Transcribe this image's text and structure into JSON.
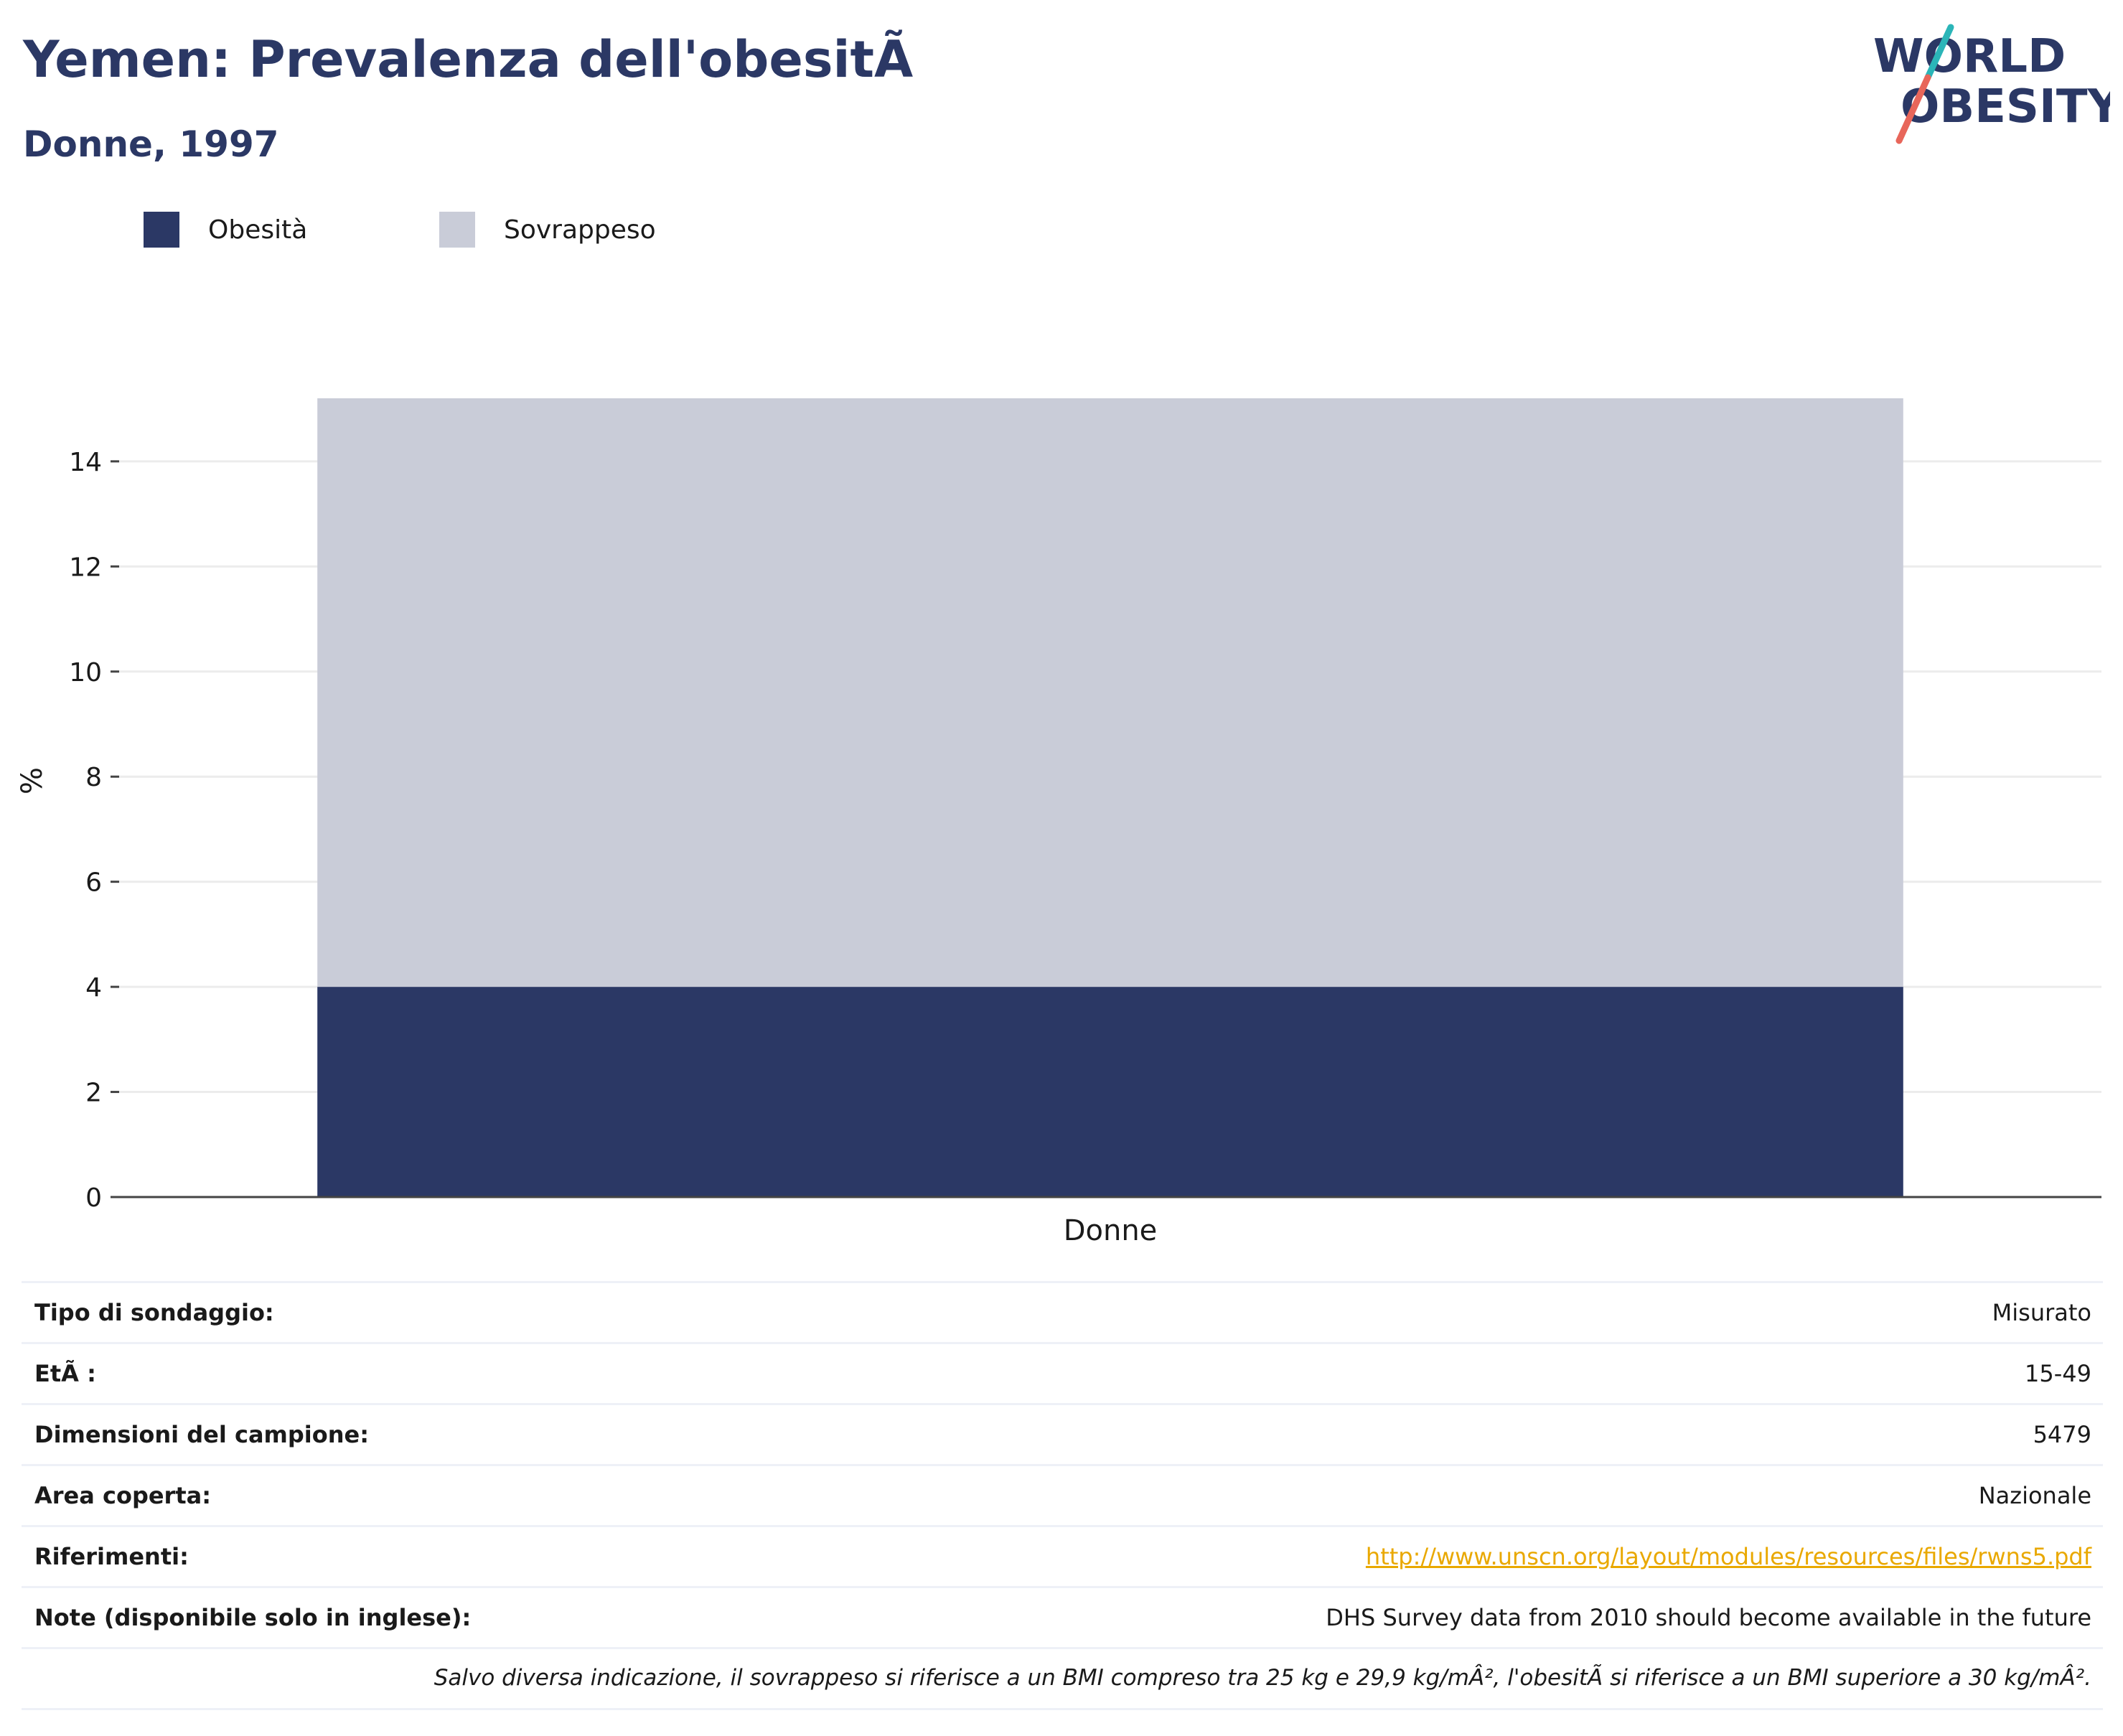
{
  "header": {
    "title": "Yemen: Prevalenza dell'obesitÃ",
    "subtitle": "Donne, 1997"
  },
  "logo": {
    "line1": "WORLD",
    "line2": "OBESITY",
    "colors": {
      "text": "#2b3865",
      "slash_top": "#2bb5b8",
      "slash_bottom": "#e8665a"
    }
  },
  "legend": {
    "items": [
      {
        "label": "Obesità",
        "color": "#2b3865"
      },
      {
        "label": "Sovrappeso",
        "color": "#c9ccd8"
      }
    ]
  },
  "chart_data": {
    "type": "bar",
    "stacked": true,
    "categories": [
      "Donne"
    ],
    "series": [
      {
        "name": "Obesità",
        "values": [
          4.0
        ],
        "color": "#2b3865"
      },
      {
        "name": "Sovrappeso",
        "values": [
          11.2
        ],
        "color": "#c9ccd8"
      }
    ],
    "ylabel": "%",
    "ylim": [
      0,
      15.2
    ],
    "yticks": [
      0,
      2,
      4,
      6,
      8,
      10,
      12,
      14
    ],
    "grid": true,
    "legend_position": "top-left"
  },
  "info": {
    "rows": [
      {
        "label": "Tipo di sondaggio:",
        "value": "Misurato"
      },
      {
        "label": "EtÃ :",
        "value": "15-49"
      },
      {
        "label": "Dimensioni del campione:",
        "value": "5479"
      },
      {
        "label": "Area coperta:",
        "value": "Nazionale"
      },
      {
        "label": "Riferimenti:",
        "value": "http://www.unscn.org/layout/modules/resources/files/rwns5.pdf"
      },
      {
        "label": "Note (disponibile solo in inglese):",
        "value": "DHS Survey data from 2010 should become available in the future"
      }
    ],
    "footnote": "Salvo diversa indicazione, il sovrappeso si riferisce a un BMI compreso tra 25 kg e 29,9 kg/mÂ², l'obesitÃ  si riferisce a un BMI superiore a 30 kg/mÂ²."
  }
}
